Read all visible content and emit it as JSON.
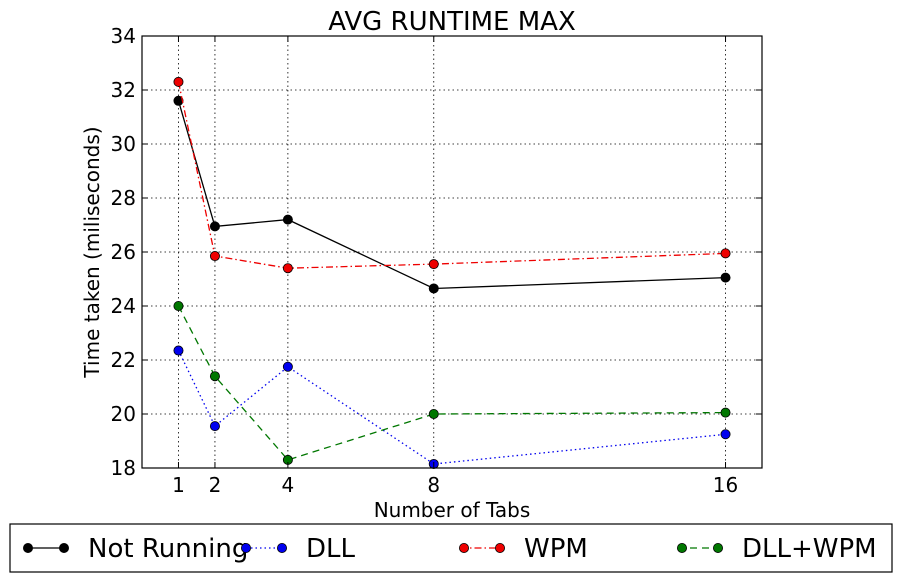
{
  "chart_data": {
    "type": "line",
    "title": "AVG RUNTIME MAX",
    "xlabel": "Number of Tabs",
    "ylabel": "Time taken (miliseconds)",
    "x": [
      1,
      2,
      4,
      8,
      16
    ],
    "xticks": [
      1,
      2,
      4,
      8,
      16
    ],
    "yticks": [
      18,
      20,
      22,
      24,
      26,
      28,
      30,
      32,
      34
    ],
    "xlim": [
      0,
      17
    ],
    "ylim": [
      18,
      34
    ],
    "grid": true,
    "legend_position": "bottom, outside plot",
    "series": [
      {
        "name": "Not Running",
        "values": [
          31.6,
          26.95,
          27.2,
          24.65,
          25.05
        ],
        "color": "#000000",
        "linestyle": "solid"
      },
      {
        "name": "DLL",
        "values": [
          22.35,
          19.55,
          21.75,
          18.15,
          19.25
        ],
        "color": "#0000ee",
        "linestyle": "dotted"
      },
      {
        "name": "WPM",
        "values": [
          32.3,
          25.85,
          25.4,
          25.55,
          25.95
        ],
        "color": "#ee0000",
        "linestyle": "dashdot"
      },
      {
        "name": "DLL+WPM",
        "values": [
          24.0,
          21.4,
          18.3,
          20.0,
          20.05
        ],
        "color": "#007700",
        "linestyle": "dashed"
      }
    ]
  }
}
